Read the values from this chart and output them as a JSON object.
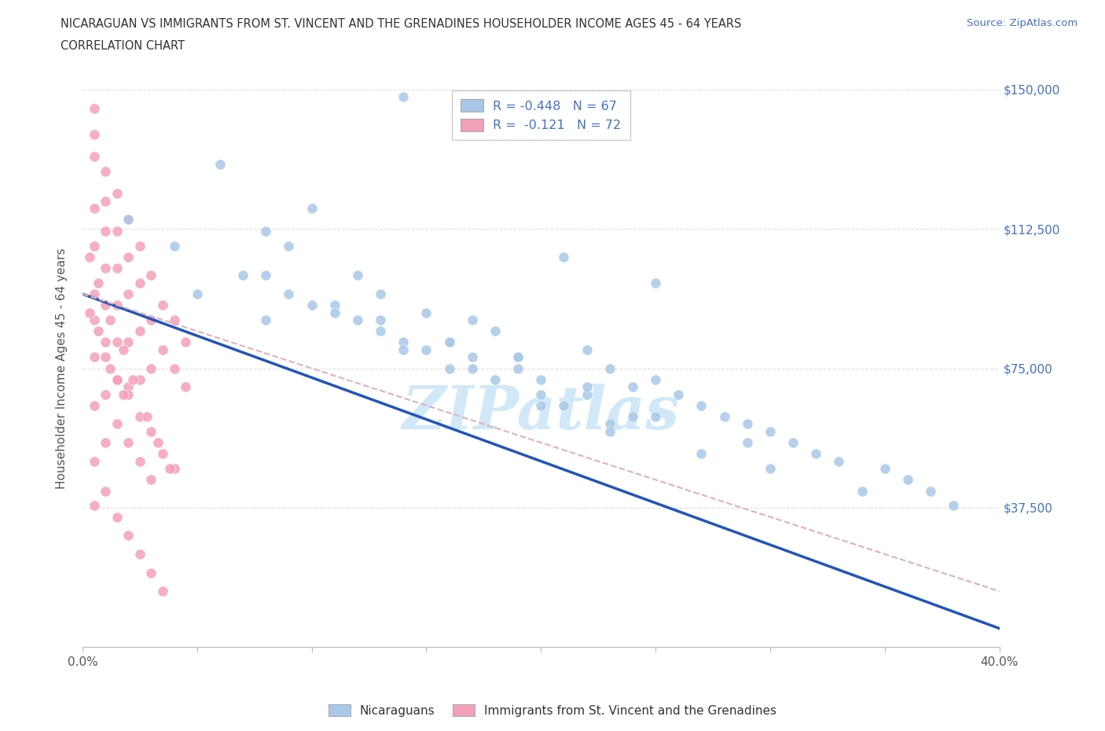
{
  "title_line1": "NICARAGUAN VS IMMIGRANTS FROM ST. VINCENT AND THE GRENADINES HOUSEHOLDER INCOME AGES 45 - 64 YEARS",
  "title_line2": "CORRELATION CHART",
  "source_text": "Source: ZipAtlas.com",
  "ylabel": "Householder Income Ages 45 - 64 years",
  "xmin": 0.0,
  "xmax": 0.4,
  "ymin": 0,
  "ymax": 150000,
  "yticks": [
    0,
    37500,
    75000,
    112500,
    150000
  ],
  "ytick_labels": [
    "",
    "$37,500",
    "$75,000",
    "$112,500",
    "$150,000"
  ],
  "xticks": [
    0.0,
    0.05,
    0.1,
    0.15,
    0.2,
    0.25,
    0.3,
    0.35,
    0.4
  ],
  "xtick_labels": [
    "0.0%",
    "",
    "",
    "",
    "",
    "",
    "",
    "",
    "40.0%"
  ],
  "blue_R": -0.448,
  "blue_N": 67,
  "pink_R": -0.121,
  "pink_N": 72,
  "blue_color": "#a8c8e8",
  "pink_color": "#f4a0b8",
  "trendline_blue_color": "#2255bb",
  "trendline_pink_color": "#e0b0c0",
  "watermark": "ZIPatlas",
  "watermark_color": "#d0e8f8",
  "background_color": "#ffffff",
  "grid_color": "#e0e0e0",
  "blue_scatter_x": [
    0.14,
    0.06,
    0.1,
    0.02,
    0.04,
    0.21,
    0.07,
    0.25,
    0.05,
    0.08,
    0.12,
    0.09,
    0.13,
    0.15,
    0.17,
    0.08,
    0.11,
    0.16,
    0.19,
    0.22,
    0.18,
    0.23,
    0.14,
    0.17,
    0.2,
    0.24,
    0.13,
    0.16,
    0.19,
    0.22,
    0.09,
    0.12,
    0.15,
    0.18,
    0.21,
    0.24,
    0.1,
    0.14,
    0.17,
    0.2,
    0.23,
    0.28,
    0.33,
    0.36,
    0.38,
    0.31,
    0.25,
    0.27,
    0.3,
    0.35,
    0.37,
    0.26,
    0.29,
    0.32,
    0.08,
    0.11,
    0.13,
    0.16,
    0.2,
    0.23,
    0.27,
    0.3,
    0.34,
    0.19,
    0.22,
    0.25,
    0.29
  ],
  "blue_scatter_y": [
    148000,
    130000,
    118000,
    115000,
    108000,
    105000,
    100000,
    98000,
    95000,
    112000,
    100000,
    108000,
    95000,
    90000,
    88000,
    88000,
    92000,
    82000,
    78000,
    80000,
    85000,
    75000,
    82000,
    78000,
    72000,
    70000,
    88000,
    82000,
    75000,
    68000,
    95000,
    88000,
    80000,
    72000,
    65000,
    62000,
    92000,
    80000,
    75000,
    68000,
    60000,
    62000,
    50000,
    45000,
    38000,
    55000,
    72000,
    65000,
    58000,
    48000,
    42000,
    68000,
    60000,
    52000,
    100000,
    90000,
    85000,
    75000,
    65000,
    58000,
    52000,
    48000,
    42000,
    78000,
    70000,
    62000,
    55000
  ],
  "pink_scatter_x": [
    0.005,
    0.005,
    0.005,
    0.005,
    0.005,
    0.005,
    0.01,
    0.01,
    0.01,
    0.01,
    0.01,
    0.01,
    0.015,
    0.015,
    0.015,
    0.015,
    0.015,
    0.015,
    0.02,
    0.02,
    0.02,
    0.02,
    0.02,
    0.025,
    0.025,
    0.025,
    0.025,
    0.03,
    0.03,
    0.03,
    0.035,
    0.035,
    0.04,
    0.04,
    0.045,
    0.045,
    0.005,
    0.005,
    0.005,
    0.01,
    0.01,
    0.01,
    0.015,
    0.015,
    0.02,
    0.02,
    0.025,
    0.025,
    0.03,
    0.03,
    0.035,
    0.04,
    0.005,
    0.005,
    0.01,
    0.015,
    0.02,
    0.025,
    0.03,
    0.035,
    0.003,
    0.003,
    0.007,
    0.007,
    0.012,
    0.012,
    0.018,
    0.018,
    0.022,
    0.028,
    0.033,
    0.038
  ],
  "pink_scatter_y": [
    145000,
    138000,
    132000,
    118000,
    108000,
    95000,
    128000,
    120000,
    112000,
    102000,
    92000,
    82000,
    122000,
    112000,
    102000,
    92000,
    82000,
    72000,
    115000,
    105000,
    95000,
    82000,
    70000,
    108000,
    98000,
    85000,
    72000,
    100000,
    88000,
    75000,
    92000,
    80000,
    88000,
    75000,
    82000,
    70000,
    88000,
    78000,
    65000,
    78000,
    68000,
    55000,
    72000,
    60000,
    68000,
    55000,
    62000,
    50000,
    58000,
    45000,
    52000,
    48000,
    50000,
    38000,
    42000,
    35000,
    30000,
    25000,
    20000,
    15000,
    105000,
    90000,
    98000,
    85000,
    88000,
    75000,
    80000,
    68000,
    72000,
    62000,
    55000,
    48000
  ],
  "blue_trend_x0": 0.0,
  "blue_trend_y0": 95000,
  "blue_trend_x1": 0.4,
  "blue_trend_y1": 5000,
  "pink_trend_x0": 0.0,
  "pink_trend_y0": 95000,
  "pink_trend_x1": 0.4,
  "pink_trend_y1": 15000
}
